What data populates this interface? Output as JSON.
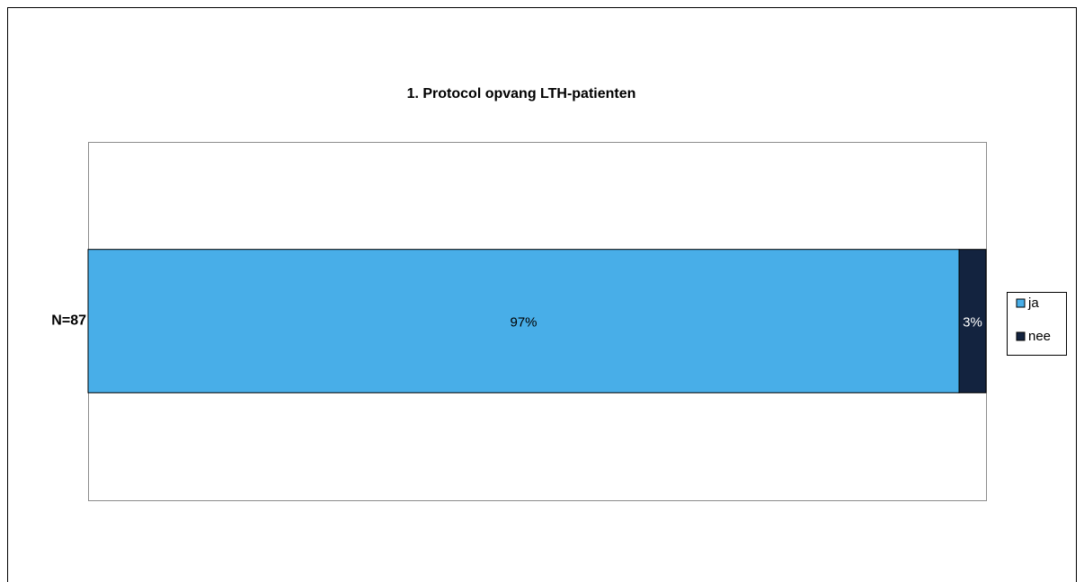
{
  "chart_data": {
    "type": "stacked_bar_horizontal",
    "title": "1. Protocol opvang LTH-patienten",
    "categories": [
      "N=87"
    ],
    "series": [
      {
        "name": "ja",
        "color": "#48aee8",
        "label_color": "#000000",
        "values": [
          97
        ],
        "value_labels": [
          "97%"
        ]
      },
      {
        "name": "nee",
        "color": "#13233f",
        "label_color": "#ffffff",
        "values": [
          3
        ],
        "value_labels": [
          "3%"
        ]
      }
    ],
    "legend": "right"
  }
}
